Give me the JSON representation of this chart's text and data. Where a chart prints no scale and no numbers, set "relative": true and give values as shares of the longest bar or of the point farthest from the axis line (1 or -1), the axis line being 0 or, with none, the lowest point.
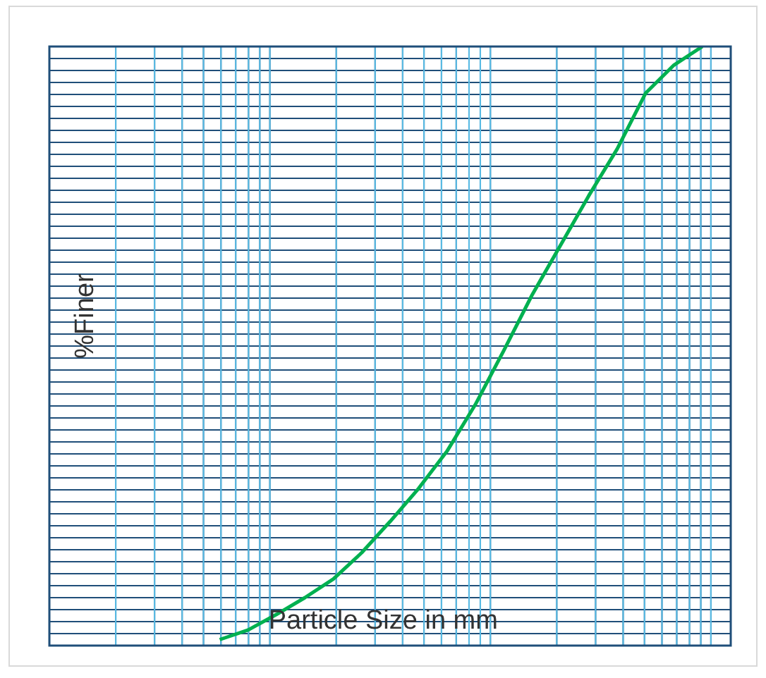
{
  "chart_data": {
    "type": "line",
    "xlabel": "Particle Size in mm",
    "ylabel": "%Finer",
    "relative": true,
    "grid": true,
    "marker": "none",
    "line_style": "solid",
    "categories": [
      null,
      null,
      null,
      null,
      null,
      null,
      null,
      null,
      null,
      null,
      null,
      null,
      null,
      null,
      null,
      null,
      null,
      null,
      null,
      null,
      null,
      null,
      null,
      null,
      null
    ],
    "series": [
      {
        "color": "#00b050",
        "values": [
          null,
          null,
          null,
          null,
          null,
          null,
          0.01,
          0.026,
          0.052,
          0.08,
          0.111,
          0.155,
          0.207,
          0.262,
          0.324,
          0.402,
          0.492,
          0.585,
          0.668,
          0.751,
          0.829,
          0.922,
          0.969,
          1.0,
          null
        ]
      }
    ]
  }
}
